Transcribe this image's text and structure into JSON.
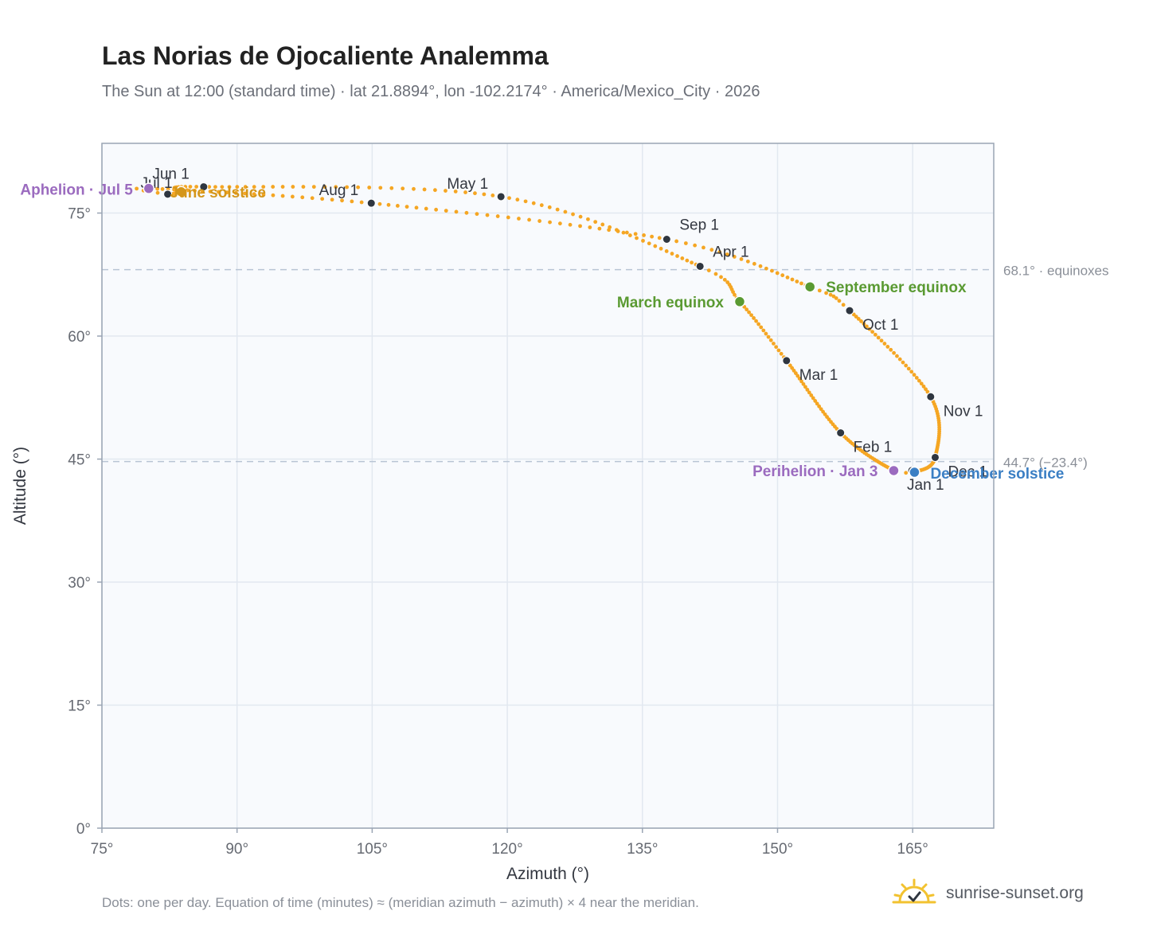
{
  "header": {
    "title": "Las Norias de Ojocaliente Analemma",
    "subtitle": "The Sun at 12:00 (standard time) · lat 21.8894°, lon -102.2174° · America/Mexico_City · 2026"
  },
  "footer": {
    "note": "Dots: one per day. Equation of time (minutes) ≈ (meridian azimuth − azimuth) × 4 near the meridian.",
    "brand": "sunrise-sunset.org"
  },
  "colors": {
    "path": "#f5a623",
    "month_marker": "#2f3640",
    "equinox": "#5a9a32",
    "solstice_june": "#d4961a",
    "solstice_december": "#3b7fc4",
    "apsis": "#9b6bbf",
    "reference_line": "#b8c4d4",
    "plot_background": "#f8fafd",
    "grid": "#e2e8f0",
    "axis_frame": "#9aa5b4"
  },
  "chart_data": {
    "type": "scatter",
    "title": "Las Norias de Ojocaliente Analemma",
    "xlabel": "Azimuth (°)",
    "ylabel": "Altitude (°)",
    "xlim": [
      75,
      174
    ],
    "ylim": [
      0,
      83.5
    ],
    "xticks": [
      75,
      90,
      105,
      120,
      135,
      150,
      165
    ],
    "xtick_labels": [
      "75°",
      "90°",
      "105°",
      "120°",
      "135°",
      "150°",
      "165°"
    ],
    "yticks": [
      0,
      15,
      30,
      45,
      60,
      75
    ],
    "ytick_labels": [
      "0°",
      "15°",
      "30°",
      "45°",
      "60°",
      "75°"
    ],
    "grid": true,
    "reference_lines": [
      {
        "y": 68.1,
        "label": "68.1° · equinoxes"
      },
      {
        "y": 44.7,
        "label": "44.7° (−23.4°)"
      }
    ],
    "month_markers": [
      {
        "label": "Jan 1",
        "az": 164.9,
        "alt": 43.6
      },
      {
        "label": "Feb 1",
        "az": 157.0,
        "alt": 48.2
      },
      {
        "label": "Mar 1",
        "az": 151.0,
        "alt": 57.0
      },
      {
        "label": "Apr 1",
        "az": 141.4,
        "alt": 68.5
      },
      {
        "label": "May 1",
        "az": 119.3,
        "alt": 77.0
      },
      {
        "label": "Jun 1",
        "az": 86.3,
        "alt": 78.2
      },
      {
        "label": "Jul 1",
        "az": 82.3,
        "alt": 77.3
      },
      {
        "label": "Aug 1",
        "az": 104.9,
        "alt": 76.2
      },
      {
        "label": "Sep 1",
        "az": 137.7,
        "alt": 71.8
      },
      {
        "label": "Oct 1",
        "az": 158.0,
        "alt": 63.1
      },
      {
        "label": "Nov 1",
        "az": 167.0,
        "alt": 52.6
      },
      {
        "label": "Dec 1",
        "az": 167.5,
        "alt": 45.2
      }
    ],
    "events": [
      {
        "label": "March equinox",
        "az": 145.8,
        "alt": 64.2,
        "kind": "equinox"
      },
      {
        "label": "June solstice",
        "az": 83.8,
        "alt": 77.6,
        "kind": "solstice_june"
      },
      {
        "label": "September equinox",
        "az": 153.6,
        "alt": 66.0,
        "kind": "equinox"
      },
      {
        "label": "December solstice",
        "az": 165.2,
        "alt": 43.4,
        "kind": "solstice_december"
      },
      {
        "label": "Perihelion · Jan 3",
        "az": 162.9,
        "alt": 43.6,
        "kind": "apsis"
      },
      {
        "label": "Aphelion · Jul 5",
        "az": 80.2,
        "alt": 78.0,
        "kind": "apsis"
      }
    ]
  }
}
